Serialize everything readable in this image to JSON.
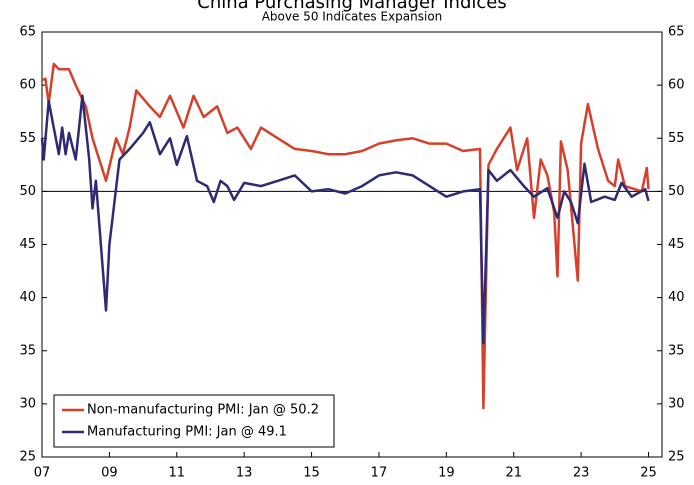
{
  "chart_data": {
    "type": "line",
    "title": "China Purchasing Manager Indices",
    "subtitle": "Above 50 Indicates Expansion",
    "xlim": [
      2007,
      2025.4
    ],
    "xticks": [
      {
        "value": 2007,
        "label": "07"
      },
      {
        "value": 2009,
        "label": "09"
      },
      {
        "value": 2011,
        "label": "11"
      },
      {
        "value": 2013,
        "label": "13"
      },
      {
        "value": 2015,
        "label": "15"
      },
      {
        "value": 2017,
        "label": "17"
      },
      {
        "value": 2019,
        "label": "19"
      },
      {
        "value": 2021,
        "label": "21"
      },
      {
        "value": 2023,
        "label": "23"
      },
      {
        "value": 2025,
        "label": "25"
      }
    ],
    "ylim": [
      25,
      65
    ],
    "yticks": [
      25,
      30,
      35,
      40,
      45,
      50,
      55,
      60,
      65
    ],
    "y2lim": [
      25,
      65
    ],
    "y2ticks": [
      25,
      30,
      35,
      40,
      45,
      50,
      55,
      60,
      65
    ],
    "reference_line": 50,
    "legend": "lower left",
    "series": [
      {
        "name": "Non-manufacturing PMI: Jan @ 50.2",
        "color": "#d6402a",
        "x": [
          2007.0,
          2007.1,
          2007.2,
          2007.35,
          2007.5,
          2007.8,
          2008.0,
          2008.3,
          2008.5,
          2008.9,
          2009.2,
          2009.4,
          2009.6,
          2009.8,
          2010.2,
          2010.5,
          2010.8,
          2011.2,
          2011.5,
          2011.8,
          2012.2,
          2012.5,
          2012.8,
          2013.2,
          2013.5,
          2014.0,
          2014.5,
          2015.0,
          2015.5,
          2016.0,
          2016.5,
          2017.0,
          2017.5,
          2018.0,
          2018.5,
          2019.0,
          2019.5,
          2020.0,
          2020.1,
          2020.25,
          2020.5,
          2020.9,
          2021.1,
          2021.4,
          2021.6,
          2021.8,
          2022.0,
          2022.2,
          2022.3,
          2022.4,
          2022.6,
          2022.9,
          2023.0,
          2023.2,
          2023.5,
          2023.8,
          2024.0,
          2024.1,
          2024.3,
          2024.6,
          2024.8,
          2024.95,
          2025.0
        ],
        "values": [
          60.5,
          60.6,
          58.3,
          62,
          61.5,
          61.5,
          60,
          58,
          55,
          51,
          55,
          53.5,
          56,
          59.5,
          58,
          57,
          59,
          56,
          59,
          57,
          58,
          55.5,
          56,
          54,
          56,
          55,
          54,
          53.8,
          53.5,
          53.5,
          53.8,
          54.5,
          54.8,
          55,
          54.5,
          54.5,
          53.8,
          54,
          29.6,
          52.5,
          54,
          56,
          52,
          55,
          47.5,
          53,
          51.5,
          48,
          42,
          54.7,
          52,
          41.6,
          54.5,
          58.2,
          54,
          51,
          50.5,
          53,
          50.5,
          50.2,
          50,
          52.2,
          50.2
        ]
      },
      {
        "name": "Manufacturing PMI: Jan @ 49.1",
        "color": "#2e2a73",
        "x": [
          2007.0,
          2007.05,
          2007.2,
          2007.5,
          2007.6,
          2007.7,
          2007.8,
          2008.0,
          2008.2,
          2008.4,
          2008.5,
          2008.6,
          2008.9,
          2009.0,
          2009.3,
          2009.6,
          2010.0,
          2010.2,
          2010.5,
          2010.8,
          2011.0,
          2011.3,
          2011.6,
          2011.9,
          2012.1,
          2012.3,
          2012.5,
          2012.7,
          2013.0,
          2013.5,
          2014.0,
          2014.5,
          2015.0,
          2015.5,
          2016.0,
          2016.5,
          2017.0,
          2017.5,
          2018.0,
          2018.5,
          2019.0,
          2019.5,
          2020.0,
          2020.1,
          2020.25,
          2020.5,
          2020.9,
          2021.3,
          2021.6,
          2022.0,
          2022.3,
          2022.5,
          2022.7,
          2022.9,
          2023.1,
          2023.3,
          2023.7,
          2024.0,
          2024.2,
          2024.5,
          2024.9,
          2025.0
        ],
        "values": [
          55,
          53,
          58.5,
          53.5,
          56,
          53.5,
          55.5,
          53,
          59,
          53,
          48.4,
          51,
          38.8,
          45,
          53,
          54,
          55.5,
          56.5,
          53.5,
          55,
          52.5,
          55.2,
          51,
          50.5,
          49,
          51,
          50.5,
          49.2,
          50.8,
          50.5,
          51,
          51.5,
          50,
          50.2,
          49.8,
          50.5,
          51.5,
          51.8,
          51.5,
          50.5,
          49.5,
          50,
          50.2,
          35.7,
          52,
          51,
          52,
          50.5,
          49.5,
          50.3,
          47.5,
          50,
          49,
          47,
          52.6,
          49,
          49.5,
          49.2,
          50.8,
          49.5,
          50.2,
          49.1
        ]
      }
    ]
  }
}
